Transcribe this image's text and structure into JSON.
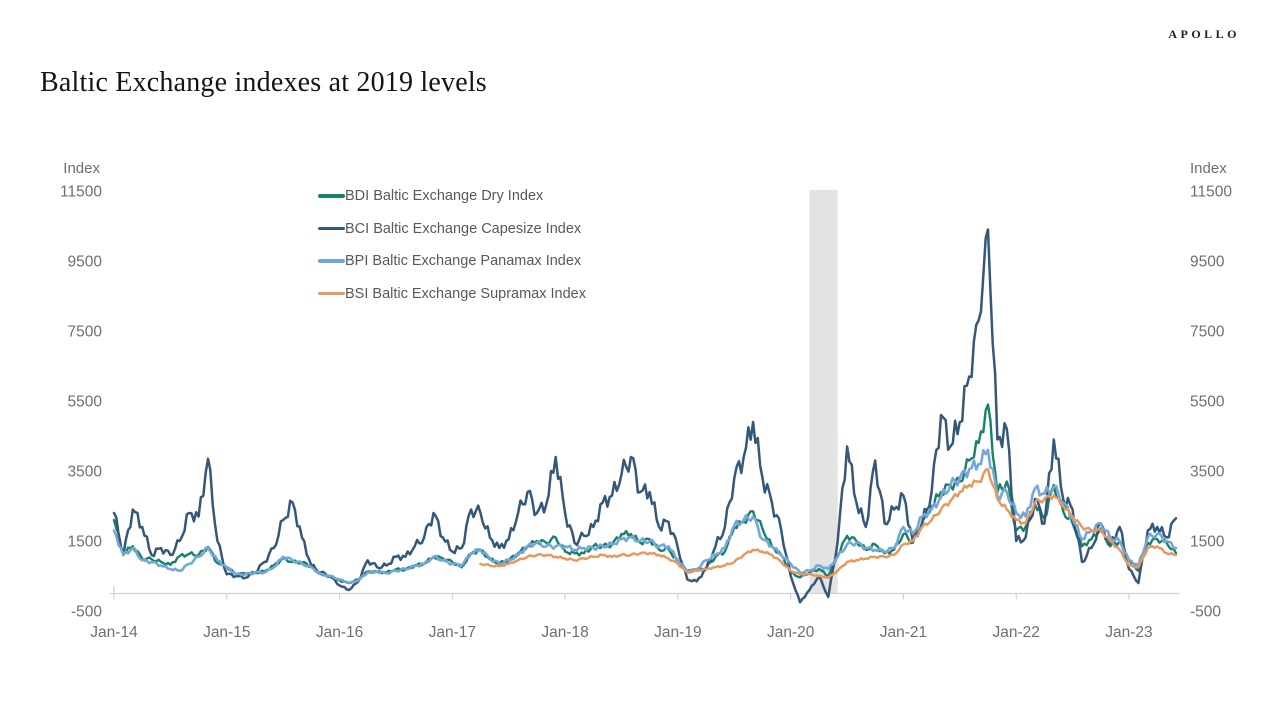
{
  "page": {
    "title": "Baltic Exchange indexes at 2019 levels",
    "brand": "APOLLO"
  },
  "chart_data": {
    "type": "line",
    "title": "Baltic Exchange indexes at 2019 levels",
    "y_axis_title": "Index",
    "ylim": [
      -500,
      11500
    ],
    "y_ticks": [
      11500,
      9500,
      7500,
      5500,
      3500,
      1500,
      -500
    ],
    "x_ticks": [
      "Jan-14",
      "Jan-15",
      "Jan-16",
      "Jan-17",
      "Jan-18",
      "Jan-19",
      "Jan-20",
      "Jan-21",
      "Jan-22",
      "Jan-23"
    ],
    "grid": false,
    "legend_position": "top-left",
    "axis_color": "#d2d2d2",
    "tick_label_color": "#6f6f6f",
    "shaded_region": {
      "from": "Mar-20",
      "to": "Jun-20",
      "color": "#e3e3e3"
    },
    "months": [
      "Jan-14",
      "Feb-14",
      "Mar-14",
      "Apr-14",
      "May-14",
      "Jun-14",
      "Jul-14",
      "Aug-14",
      "Sep-14",
      "Oct-14",
      "Nov-14",
      "Dec-14",
      "Jan-15",
      "Feb-15",
      "Mar-15",
      "Apr-15",
      "May-15",
      "Jun-15",
      "Jul-15",
      "Aug-15",
      "Sep-15",
      "Oct-15",
      "Nov-15",
      "Dec-15",
      "Jan-16",
      "Feb-16",
      "Mar-16",
      "Apr-16",
      "May-16",
      "Jun-16",
      "Jul-16",
      "Aug-16",
      "Sep-16",
      "Oct-16",
      "Nov-16",
      "Dec-16",
      "Jan-17",
      "Feb-17",
      "Mar-17",
      "Apr-17",
      "May-17",
      "Jun-17",
      "Jul-17",
      "Aug-17",
      "Sep-17",
      "Oct-17",
      "Nov-17",
      "Dec-17",
      "Jan-18",
      "Feb-18",
      "Mar-18",
      "Apr-18",
      "May-18",
      "Jun-18",
      "Jul-18",
      "Aug-18",
      "Sep-18",
      "Oct-18",
      "Nov-18",
      "Dec-18",
      "Jan-19",
      "Feb-19",
      "Mar-19",
      "Apr-19",
      "May-19",
      "Jun-19",
      "Jul-19",
      "Aug-19",
      "Sep-19",
      "Oct-19",
      "Nov-19",
      "Dec-19",
      "Jan-20",
      "Feb-20",
      "Mar-20",
      "Apr-20",
      "May-20",
      "Jun-20",
      "Jul-20",
      "Aug-20",
      "Sep-20",
      "Oct-20",
      "Nov-20",
      "Dec-20",
      "Jan-21",
      "Feb-21",
      "Mar-21",
      "Apr-21",
      "May-21",
      "Jun-21",
      "Jul-21",
      "Aug-21",
      "Sep-21",
      "Oct-21",
      "Nov-21",
      "Dec-21",
      "Jan-22",
      "Feb-22",
      "Mar-22",
      "Apr-22",
      "May-22",
      "Jun-22",
      "Jul-22",
      "Aug-22",
      "Sep-22",
      "Oct-22",
      "Nov-22",
      "Dec-22",
      "Jan-23",
      "Feb-23",
      "Mar-23",
      "Apr-23",
      "May-23",
      "Jun-23"
    ],
    "series": [
      {
        "name": "BDI",
        "label": "BDI Baltic Exchange Dry Index",
        "color": "#178268",
        "values": [
          2100,
          1150,
          1350,
          1000,
          980,
          900,
          820,
          1070,
          1130,
          1100,
          1330,
          870,
          750,
          550,
          570,
          590,
          630,
          800,
          1000,
          900,
          890,
          780,
          550,
          480,
          370,
          300,
          400,
          630,
          620,
          600,
          690,
          680,
          800,
          850,
          1050,
          1000,
          900,
          750,
          1150,
          1250,
          980,
          860,
          950,
          1150,
          1350,
          1500,
          1450,
          1600,
          1200,
          1150,
          1150,
          1350,
          1350,
          1400,
          1700,
          1700,
          1450,
          1550,
          1250,
          1270,
          900,
          630,
          690,
          730,
          1050,
          1200,
          1900,
          2050,
          2350,
          1850,
          1350,
          1100,
          600,
          460,
          600,
          700,
          500,
          1100,
          1650,
          1500,
          1250,
          1400,
          1150,
          1250,
          1700,
          1450,
          2050,
          2500,
          2900,
          3100,
          3200,
          3800,
          4300,
          5400,
          2900,
          3200,
          1800,
          1900,
          2550,
          2150,
          3100,
          2350,
          2000,
          1350,
          1550,
          1850,
          1350,
          1500,
          950,
          650,
          1450,
          1550,
          1450,
          1150
        ]
      },
      {
        "name": "BCI",
        "label": "BCI Baltic Exchange Capesize Index",
        "color": "#35587a",
        "values": [
          2300,
          1100,
          2400,
          1900,
          1100,
          1300,
          1100,
          1500,
          2300,
          2200,
          3850,
          1500,
          550,
          500,
          450,
          600,
          900,
          1300,
          2100,
          2600,
          1600,
          800,
          600,
          500,
          230,
          100,
          350,
          950,
          750,
          800,
          1050,
          1050,
          1350,
          1600,
          2300,
          1600,
          1200,
          1300,
          2400,
          2300,
          1600,
          1300,
          1550,
          2300,
          2900,
          2300,
          2550,
          3900,
          2300,
          1450,
          1650,
          1900,
          2600,
          2800,
          3400,
          3900,
          2900,
          2900,
          1900,
          2050,
          1300,
          400,
          350,
          700,
          1350,
          1900,
          3300,
          3900,
          4900,
          3300,
          2600,
          1800,
          500,
          -250,
          100,
          500,
          -100,
          1500,
          4200,
          2600,
          1900,
          3800,
          2000,
          2400,
          2800,
          1500,
          2000,
          2900,
          5100,
          4200,
          4900,
          6200,
          7800,
          10400,
          4400,
          4700,
          1500,
          1600,
          2700,
          2000,
          4400,
          2700,
          2400,
          900,
          1300,
          2000,
          1400,
          1900,
          700,
          300,
          1800,
          1900,
          1600,
          2150
        ]
      },
      {
        "name": "BPI",
        "label": "BPI Baltic Exchange Panamax Index",
        "color": "#74a7d8",
        "values": [
          1800,
          1100,
          1300,
          950,
          900,
          800,
          700,
          650,
          850,
          1050,
          1300,
          950,
          750,
          550,
          550,
          600,
          600,
          750,
          1050,
          950,
          850,
          750,
          550,
          500,
          400,
          300,
          380,
          600,
          620,
          580,
          650,
          700,
          780,
          850,
          1050,
          950,
          850,
          800,
          1150,
          1250,
          1000,
          850,
          950,
          1100,
          1350,
          1450,
          1350,
          1350,
          1350,
          1250,
          1300,
          1300,
          1350,
          1400,
          1550,
          1600,
          1500,
          1500,
          1350,
          1350,
          950,
          650,
          680,
          950,
          1100,
          1300,
          1950,
          2100,
          2200,
          1550,
          1350,
          1100,
          850,
          600,
          650,
          800,
          700,
          1050,
          1400,
          1450,
          1300,
          1250,
          1200,
          1300,
          1900,
          1700,
          2200,
          2400,
          2750,
          3100,
          3300,
          3550,
          3700,
          4100,
          2800,
          2900,
          2300,
          2200,
          3000,
          2850,
          3050,
          2600,
          2150,
          1550,
          1800,
          2000,
          1600,
          1500,
          950,
          800,
          1600,
          1700,
          1500,
          1300
        ]
      },
      {
        "name": "BSI",
        "label": "BSI Baltic Exchange Supramax Index",
        "color": "#e8985f",
        "values": [
          null,
          null,
          null,
          null,
          null,
          null,
          null,
          null,
          null,
          null,
          null,
          null,
          null,
          null,
          null,
          null,
          null,
          null,
          null,
          null,
          null,
          null,
          null,
          null,
          null,
          null,
          null,
          null,
          null,
          null,
          null,
          null,
          null,
          null,
          null,
          null,
          null,
          null,
          null,
          850,
          800,
          780,
          850,
          950,
          1050,
          1100,
          1100,
          1050,
          1000,
          950,
          1000,
          1050,
          1100,
          1050,
          1100,
          1100,
          1150,
          1150,
          1100,
          1000,
          850,
          600,
          650,
          700,
          750,
          800,
          900,
          1100,
          1250,
          1200,
          1100,
          900,
          650,
          550,
          550,
          500,
          450,
          650,
          900,
          950,
          1000,
          1050,
          1050,
          1100,
          1400,
          1500,
          1900,
          2100,
          2400,
          2650,
          2900,
          3100,
          3200,
          3550,
          2700,
          2400,
          2100,
          2000,
          2600,
          2700,
          2800,
          2500,
          2200,
          1900,
          1800,
          1800,
          1500,
          1250,
          800,
          750,
          1300,
          1350,
          1150,
          1100
        ]
      }
    ]
  }
}
